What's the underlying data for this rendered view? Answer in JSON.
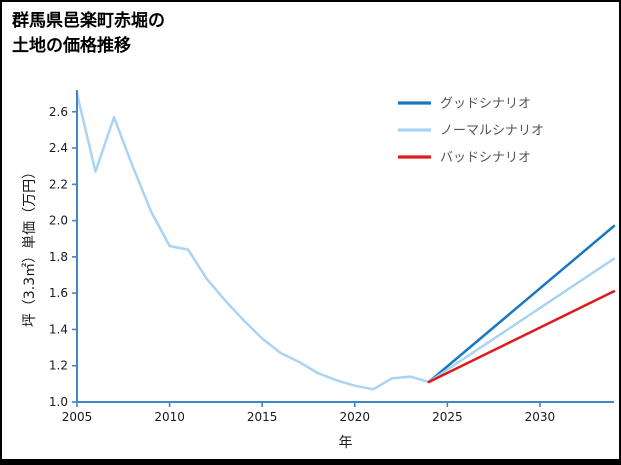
{
  "page": {
    "title_line1": "群馬県邑楽町赤堀の",
    "title_line2": "土地の価格推移"
  },
  "chart_data": {
    "type": "line",
    "title": "群馬県邑楽町赤堀の土地の価格推移",
    "xlabel": "年",
    "ylabel": "坪（3.3㎡）単価（万円）",
    "xlim": [
      2005,
      2034
    ],
    "ylim": [
      1.0,
      2.72
    ],
    "xticks": [
      2005,
      2010,
      2015,
      2020,
      2025,
      2030
    ],
    "yticks": [
      "1.0",
      "1.2",
      "1.4",
      "1.6",
      "1.8",
      "2.0",
      "2.2",
      "2.4",
      "2.6"
    ],
    "grid": false,
    "legend_position": "upper-right",
    "colors": {
      "axis": "#4285c9",
      "tick_label": "#1a1a1a",
      "legend_text": "#555555",
      "good": "#1a78c2",
      "normal": "#a9d4f5",
      "bad": "#dd1a1d"
    },
    "series": [
      {
        "id": "history",
        "in_legend": false,
        "color": "#a9d4f5",
        "x": [
          2005,
          2006,
          2007,
          2008,
          2009,
          2010,
          2011,
          2012,
          2013,
          2014,
          2015,
          2016,
          2017,
          2018,
          2019,
          2020,
          2021,
          2022,
          2023,
          2024
        ],
        "y": [
          2.7,
          2.27,
          2.57,
          2.3,
          2.05,
          1.86,
          1.84,
          1.68,
          1.56,
          1.45,
          1.35,
          1.27,
          1.22,
          1.16,
          1.12,
          1.09,
          1.07,
          1.13,
          1.14,
          1.11
        ]
      },
      {
        "id": "good",
        "name": "グッドシナリオ",
        "in_legend": true,
        "color": "#1a78c2",
        "x": [
          2024,
          2034
        ],
        "y": [
          1.11,
          1.97
        ]
      },
      {
        "id": "normal",
        "name": "ノーマルシナリオ",
        "in_legend": true,
        "color": "#a9d4f5",
        "x": [
          2024,
          2034
        ],
        "y": [
          1.11,
          1.79
        ]
      },
      {
        "id": "bad",
        "name": "バッドシナリオ",
        "in_legend": true,
        "color": "#dd1a1d",
        "x": [
          2024,
          2034
        ],
        "y": [
          1.11,
          1.61
        ]
      }
    ]
  }
}
